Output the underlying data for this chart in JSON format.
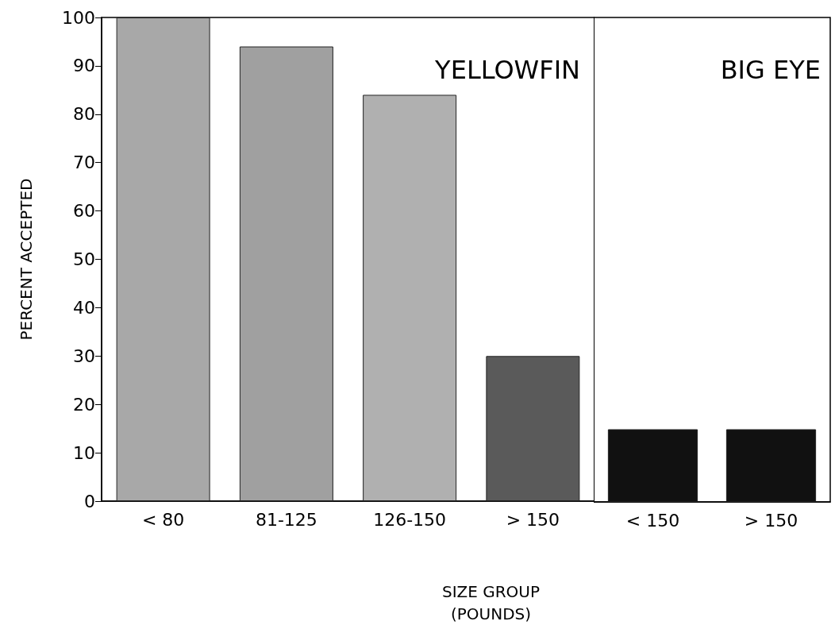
{
  "chart_data": [
    {
      "type": "bar",
      "ylabel": "PERCENT ACCEPTED",
      "xlabel": "SIZE GROUP\n(POUNDS)",
      "annotations": [
        "YELLOWFIN"
      ],
      "categories": [
        "< 80",
        "81-125",
        "126-150",
        "> 150"
      ],
      "values": [
        100,
        94,
        84,
        30
      ],
      "colors": [
        "#a8a8a8",
        "#a0a0a0",
        "#b0b0b0",
        "#5a5a5a"
      ],
      "ylim": [
        0,
        100
      ],
      "yticks": [
        0,
        10,
        20,
        30,
        40,
        50,
        60,
        70,
        80,
        90,
        100
      ],
      "grid": false
    },
    {
      "type": "bar",
      "annotations": [
        "BIG EYE"
      ],
      "tick_labels": "x",
      "categories": [
        "< 150",
        "> 150"
      ],
      "values": [
        15,
        15
      ],
      "colors": [
        "#111111",
        "#111111"
      ],
      "ylim": [
        0,
        100
      ],
      "yticks": [
        0,
        10,
        20,
        30,
        40,
        50,
        60,
        70,
        80,
        90,
        100
      ],
      "grid": false
    }
  ]
}
